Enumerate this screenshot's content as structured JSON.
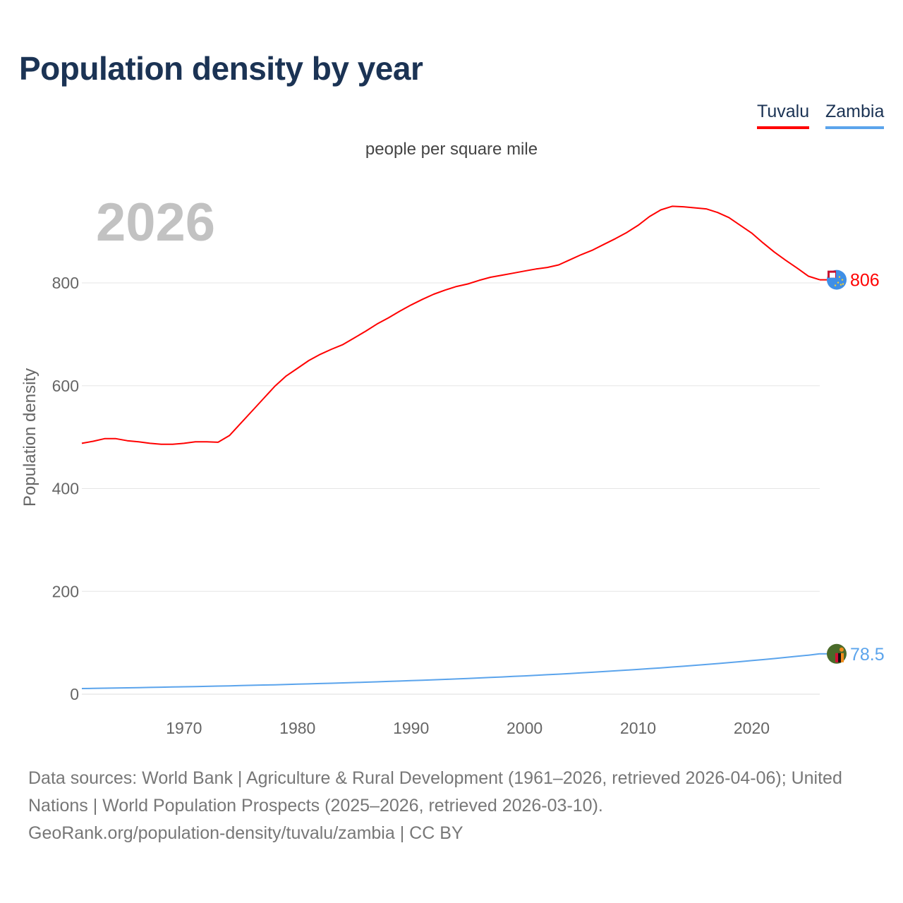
{
  "title": "Population density by year",
  "legend": [
    {
      "name": "Tuvalu",
      "color": "#ff0000"
    },
    {
      "name": "Zambia",
      "color": "#5ba4ec"
    }
  ],
  "subtitle": "people per square mile",
  "year_watermark": "2026",
  "footer": {
    "line1": "Data sources: World Bank | Agriculture & Rural Development (1961–2026, retrieved 2026-04-06); United Nations | World Population Prospects (2025–2026, retrieved 2026-03-10).",
    "line2": "GeoRank.org/population-density/tuvalu/zambia | CC BY"
  },
  "chart_data": {
    "type": "line",
    "title": "Population density by year",
    "subtitle": "people per square mile",
    "xlabel": "",
    "ylabel": "Population density",
    "xlim": [
      1961,
      2026
    ],
    "ylim": [
      0,
      1000
    ],
    "grid": true,
    "legend_position": "top-right",
    "x_ticks": [
      1970,
      1980,
      1990,
      2000,
      2010,
      2020
    ],
    "y_ticks": [
      0,
      200,
      400,
      600,
      800
    ],
    "x": [
      1961,
      1962,
      1963,
      1964,
      1965,
      1966,
      1967,
      1968,
      1969,
      1970,
      1971,
      1972,
      1973,
      1974,
      1975,
      1976,
      1977,
      1978,
      1979,
      1980,
      1981,
      1982,
      1983,
      1984,
      1985,
      1986,
      1987,
      1988,
      1989,
      1990,
      1991,
      1992,
      1993,
      1994,
      1995,
      1996,
      1997,
      1998,
      1999,
      2000,
      2001,
      2002,
      2003,
      2004,
      2005,
      2006,
      2007,
      2008,
      2009,
      2010,
      2011,
      2012,
      2013,
      2014,
      2015,
      2016,
      2017,
      2018,
      2019,
      2020,
      2021,
      2022,
      2023,
      2024,
      2025,
      2026
    ],
    "series": [
      {
        "name": "Tuvalu",
        "color": "#ff0000",
        "end_label": "806",
        "values": [
          488,
          492,
          497,
          497,
          493,
          491,
          488,
          486,
          486,
          488,
          491,
          491,
          490,
          503,
          527,
          551,
          575,
          599,
          619,
          634,
          649,
          661,
          671,
          680,
          693,
          706,
          720,
          732,
          745,
          757,
          768,
          778,
          786,
          793,
          798,
          805,
          811,
          815,
          819,
          823,
          827,
          830,
          835,
          845,
          855,
          864,
          875,
          886,
          898,
          912,
          929,
          942,
          949,
          948,
          946,
          944,
          937,
          927,
          912,
          897,
          878,
          860,
          844,
          829,
          813,
          806
        ]
      },
      {
        "name": "Zambia",
        "color": "#5ba4ec",
        "end_label": "78.5",
        "values": [
          11.0,
          11.3,
          11.7,
          12.0,
          12.4,
          12.8,
          13.2,
          13.6,
          14.0,
          14.4,
          14.8,
          15.3,
          15.8,
          16.2,
          16.7,
          17.3,
          17.8,
          18.3,
          18.9,
          19.5,
          20.1,
          20.7,
          21.3,
          22.0,
          22.6,
          23.3,
          24.0,
          24.8,
          25.5,
          26.3,
          27.1,
          28.0,
          28.8,
          29.7,
          30.6,
          31.6,
          32.5,
          33.5,
          34.6,
          35.6,
          36.7,
          37.9,
          39.0,
          40.2,
          41.5,
          42.7,
          44.0,
          45.4,
          46.8,
          48.2,
          49.7,
          51.2,
          52.8,
          54.4,
          56.1,
          57.8,
          59.6,
          61.4,
          63.3,
          65.3,
          67.3,
          69.3,
          71.5,
          73.7,
          75.9,
          78.5
        ]
      }
    ]
  }
}
